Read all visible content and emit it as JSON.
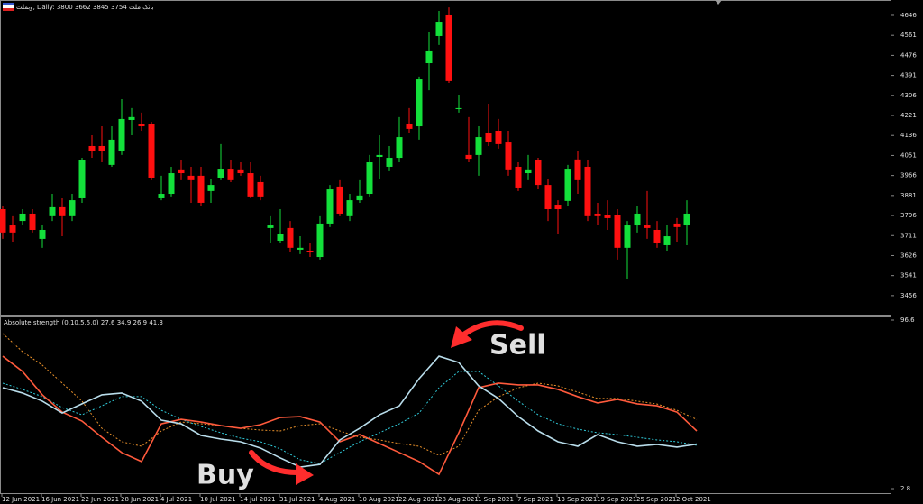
{
  "chart_data": [
    {
      "type": "candlestick",
      "symbol": "وبملت,",
      "period": "Daily:",
      "ohlc_text": "3800 3662 3845 3754",
      "name": "بانک ملت",
      "up_color": "#13e03b",
      "down_color": "#ff1010",
      "candles": [
        [
          3823,
          3838,
          3697,
          3724
        ],
        [
          3754,
          3793,
          3685,
          3724
        ],
        [
          3773,
          3823,
          3754,
          3804
        ],
        [
          3804,
          3823,
          3724,
          3735
        ],
        [
          3697,
          3754,
          3659,
          3735
        ],
        [
          3793,
          3888,
          3773,
          3831
        ],
        [
          3831,
          3869,
          3708,
          3793
        ],
        [
          3793,
          3888,
          3773,
          3861
        ],
        [
          3869,
          4041,
          3850,
          4030
        ],
        [
          4091,
          4137,
          4041,
          4068
        ],
        [
          4091,
          4175,
          4022,
          4068
        ],
        [
          4011,
          4175,
          4003,
          4118
        ],
        [
          4068,
          4290,
          4053,
          4206
        ],
        [
          4202,
          4252,
          4137,
          4214
        ],
        [
          4183,
          4233,
          4156,
          4175
        ],
        [
          4183,
          4194,
          3946,
          3957
        ],
        [
          3869,
          3965,
          3861,
          3888
        ],
        [
          3888,
          4003,
          3877,
          3976
        ],
        [
          3992,
          4030,
          3946,
          3976
        ],
        [
          3965,
          4003,
          3850,
          3946
        ],
        [
          3965,
          4003,
          3838,
          3850
        ],
        [
          3900,
          3953,
          3850,
          3926
        ],
        [
          3957,
          4099,
          3946,
          3995
        ],
        [
          3995,
          4030,
          3938,
          3946
        ],
        [
          3992,
          4022,
          3965,
          3976
        ],
        [
          3976,
          4022,
          3869,
          3877
        ],
        [
          3938,
          3965,
          3861,
          3877
        ],
        [
          3743,
          3793,
          3678,
          3754
        ],
        [
          3689,
          3823,
          3678,
          3716
        ],
        [
          3743,
          3773,
          3640,
          3659
        ],
        [
          3651,
          3708,
          3632,
          3659
        ],
        [
          3647,
          3678,
          3620,
          3640
        ],
        [
          3620,
          3793,
          3609,
          3762
        ],
        [
          3762,
          3926,
          3747,
          3907
        ],
        [
          3919,
          3946,
          3793,
          3804
        ],
        [
          3793,
          3888,
          3773,
          3861
        ],
        [
          3861,
          3946,
          3850,
          3881
        ],
        [
          3888,
          4053,
          3877,
          4022
        ],
        [
          4045,
          4137,
          3953,
          4053
        ],
        [
          4003,
          4091,
          3984,
          4041
        ],
        [
          4041,
          4214,
          4022,
          4129
        ],
        [
          4183,
          4252,
          4145,
          4164
        ],
        [
          4175,
          4386,
          4118,
          4374
        ],
        [
          4443,
          4577,
          4328,
          4493
        ],
        [
          4558,
          4665,
          4520,
          4619
        ],
        [
          4646,
          4680,
          4359,
          4367
        ],
        [
          4248,
          4309,
          4233,
          4252
        ],
        [
          4053,
          4214,
          4022,
          4037
        ],
        [
          4053,
          4175,
          3965,
          4129
        ],
        [
          4145,
          4271,
          4091,
          4110
        ],
        [
          4156,
          4206,
          4080,
          4099
        ],
        [
          4106,
          4156,
          3965,
          3992
        ],
        [
          4003,
          4022,
          3900,
          3915
        ],
        [
          3976,
          4053,
          3946,
          3992
        ],
        [
          4030,
          4041,
          3907,
          3926
        ],
        [
          3926,
          3953,
          3773,
          3823
        ],
        [
          3842,
          3861,
          3716,
          3823
        ],
        [
          3858,
          4011,
          3838,
          3995
        ],
        [
          4034,
          4068,
          3888,
          3946
        ],
        [
          4003,
          4030,
          3773,
          3793
        ],
        [
          3804,
          3850,
          3754,
          3793
        ],
        [
          3800,
          3861,
          3735,
          3785
        ],
        [
          3800,
          3823,
          3609,
          3659
        ],
        [
          3659,
          3773,
          3525,
          3754
        ],
        [
          3754,
          3838,
          3724,
          3804
        ],
        [
          3754,
          3900,
          3697,
          3743
        ],
        [
          3735,
          3773,
          3659,
          3678
        ],
        [
          3670,
          3754,
          3647,
          3708
        ],
        [
          3762,
          3785,
          3685,
          3747
        ],
        [
          3754,
          3861,
          3670,
          3804
        ]
      ],
      "ylim": [
        3379,
        4711
      ],
      "yticks": [
        4646,
        4561,
        4476,
        4391,
        4306,
        4221,
        4136,
        4051,
        3966,
        3881,
        3796,
        3711,
        3626,
        3541,
        3456
      ],
      "xtick_labels": [
        "12 Jun 2021",
        "16 Jun 2021",
        "22 Jun 2021",
        "28 Jun 2021",
        "4 Jul 2021",
        "10 Jul 2021",
        "14 Jul 2021",
        "31 Jul 2021",
        "4 Aug 2021",
        "10 Aug 2021",
        "22 Aug 2021",
        "28 Aug 2021",
        "1 Sep 2021",
        "7 Sep 2021",
        "13 Sep 2021",
        "19 Sep 2021",
        "25 Sep 2021",
        "2 Oct 2021"
      ]
    },
    {
      "type": "line",
      "title": "Absolute strength (0,10,5,5,0)",
      "series": [
        {
          "color": "#b8dcea",
          "dash": false,
          "values": [
            59.0,
            56.0,
            51.5,
            44.9,
            50.0,
            55.0,
            56.0,
            51.5,
            40.9,
            38.9,
            32.4,
            30.4,
            28.9,
            25.4,
            19.9,
            14.8,
            16.3,
            29.9,
            36.4,
            43.9,
            48.9,
            64.0,
            76.5,
            73.0,
            60.0,
            53.0,
            42.9,
            34.9,
            28.9,
            26.4,
            32.9,
            28.9,
            26.4,
            27.4,
            25.9,
            27.6
          ]
        },
        {
          "color": "#ff5a3c",
          "dash": false,
          "values": [
            76.5,
            68.0,
            55.0,
            45.4,
            40.4,
            31.4,
            22.9,
            17.9,
            38.9,
            41.4,
            39.9,
            37.9,
            36.4,
            38.4,
            42.4,
            42.9,
            39.9,
            28.9,
            32.9,
            27.9,
            22.9,
            17.9,
            10.8,
            33.9,
            59.0,
            61.5,
            60.5,
            60.5,
            58.0,
            54.0,
            50.5,
            52.5,
            50.0,
            48.9,
            45.4,
            34.9
          ]
        },
        {
          "color": "#2fc9d8",
          "dash": true,
          "values": [
            61.5,
            58.0,
            54.0,
            47.9,
            43.9,
            48.9,
            54.0,
            54.0,
            46.4,
            41.4,
            37.4,
            33.9,
            30.9,
            28.9,
            24.9,
            18.9,
            16.8,
            22.9,
            28.9,
            33.9,
            38.9,
            44.9,
            58.9,
            68.0,
            68.0,
            60.0,
            51.5,
            43.9,
            38.9,
            35.9,
            33.9,
            32.9,
            31.4,
            29.9,
            28.9,
            26.9
          ]
        },
        {
          "color": "#e8902a",
          "dash": true,
          "values": [
            89.1,
            79.0,
            71.5,
            61.5,
            51.5,
            36.4,
            28.9,
            26.4,
            34.9,
            39.9,
            38.9,
            37.9,
            36.4,
            35.4,
            34.9,
            37.9,
            38.9,
            34.9,
            31.4,
            29.9,
            27.9,
            26.4,
            21.4,
            26.4,
            46.4,
            53.9,
            58.9,
            61.5,
            60.0,
            56.5,
            53.0,
            53.0,
            51.5,
            49.9,
            46.4,
            41.3
          ]
        }
      ],
      "ylim": [
        -0.2,
        98.1
      ],
      "yticks": [
        96.6,
        2.8
      ],
      "annotations": [
        {
          "text": "Sell",
          "color": "#ff1aa6"
        },
        {
          "text": "Buy",
          "color": "#22e03c"
        }
      ]
    }
  ]
}
